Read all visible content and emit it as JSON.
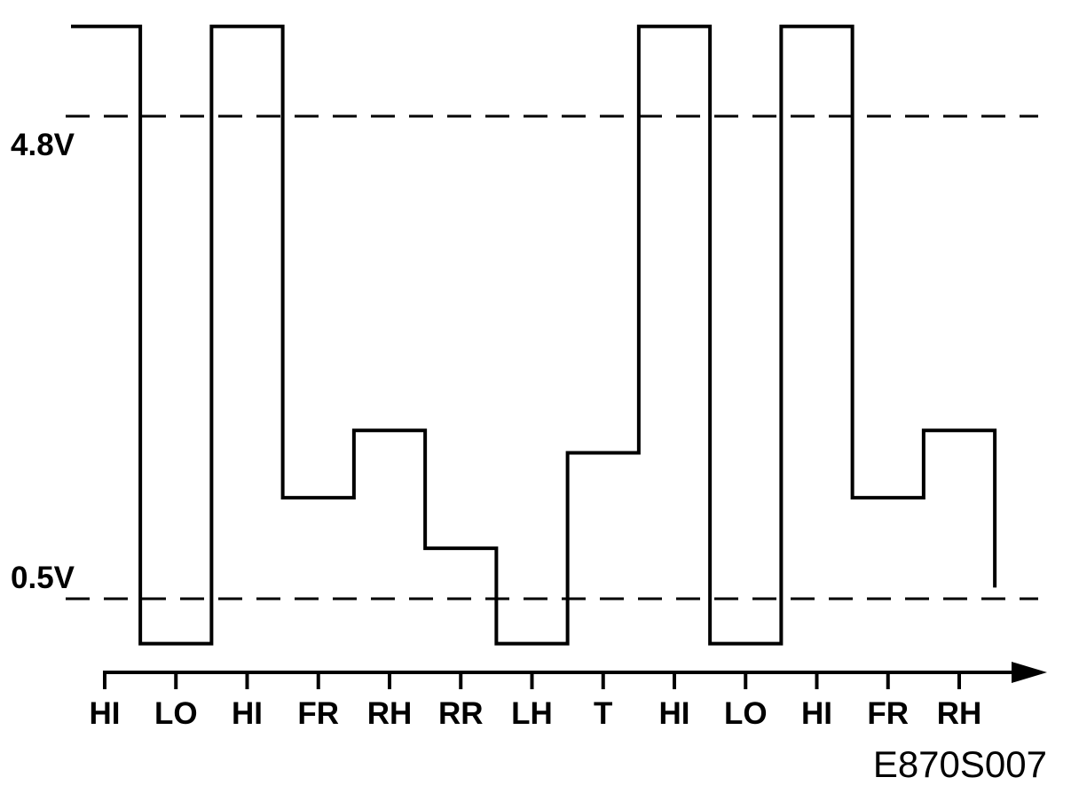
{
  "chart_data": {
    "type": "line",
    "step": true,
    "title": "",
    "xlabel": "",
    "ylabel": "",
    "categories": [
      "HI",
      "LO",
      "HI",
      "FR",
      "RH",
      "RR",
      "LH",
      "T",
      "HI",
      "LO",
      "HI",
      "FR",
      "RH"
    ],
    "values": [
      5.6,
      0.1,
      5.6,
      1.4,
      2.0,
      0.95,
      0.1,
      1.8,
      5.6,
      0.1,
      5.6,
      1.4,
      2.0
    ],
    "tail_value": 0.6,
    "reference_lines": [
      {
        "label": "4.8V",
        "value": 4.8,
        "style": "dashed"
      },
      {
        "label": "0.5V",
        "value": 0.5,
        "style": "dashed"
      }
    ],
    "grid": false,
    "line_color": "#000000",
    "figure_code": "E870S007"
  }
}
